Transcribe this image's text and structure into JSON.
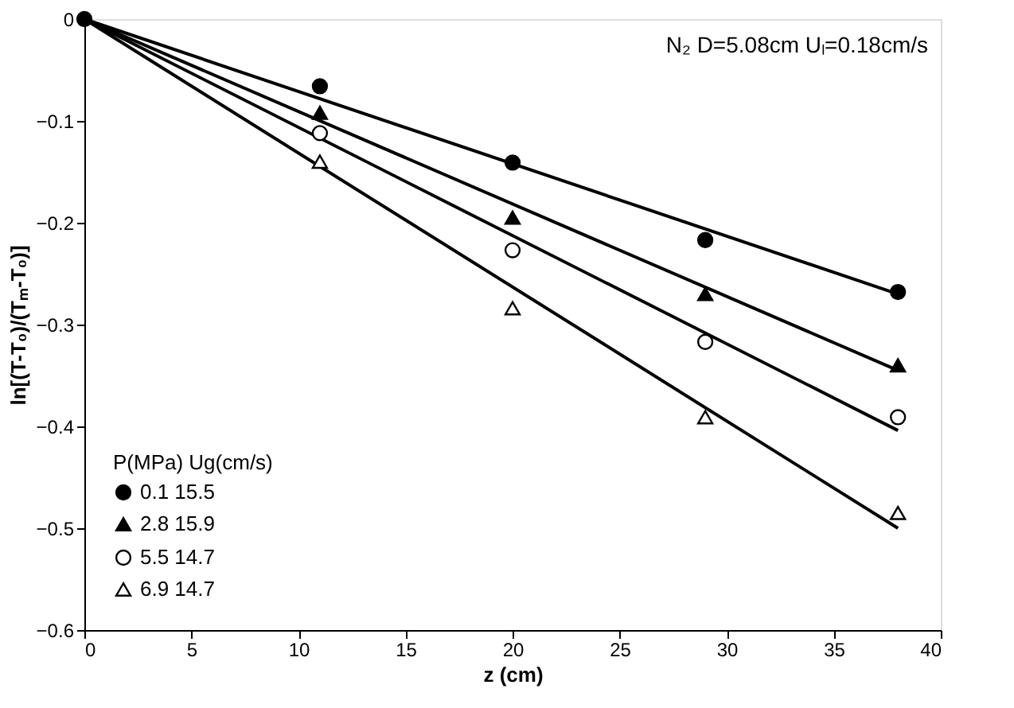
{
  "chart_data": {
    "type": "scatter",
    "xlabel": "z (cm)",
    "ylabel": "ln[(T-T₀)/(Tₘ-T₀)]",
    "legend_title": "P(MPa)   Ug(cm/s)",
    "legend": "bottom left",
    "annotations": [
      "N₂ D=5.08cm Uₗ=0.18cm/s"
    ],
    "xlim": [
      0,
      40
    ],
    "xticks": [
      0,
      5,
      10,
      15,
      20,
      25,
      30,
      35,
      40
    ],
    "ylim": [
      -0.6,
      0
    ],
    "yticks": [
      -0.6,
      -0.5,
      -0.4,
      -0.3,
      -0.2,
      -0.1,
      0
    ],
    "grid": false,
    "series": [
      {
        "name": "0.1      15.5",
        "color": "#000000",
        "marker": "circle",
        "x": [
          0,
          11,
          20,
          29,
          38
        ],
        "values": [
          0,
          -0.066,
          -0.141,
          -0.217,
          -0.268
        ]
      },
      {
        "name": "2.8      15.9",
        "color": "#000000",
        "marker": "triangle",
        "x": [
          11,
          20,
          29,
          38
        ],
        "values": [
          -0.092,
          -0.195,
          -0.27,
          -0.34
        ]
      },
      {
        "name": "5.5      14.7",
        "color": "#ffffff",
        "marker": "circle",
        "x": [
          11,
          20,
          29,
          38
        ],
        "values": [
          -0.112,
          -0.227,
          -0.317,
          -0.391
        ]
      },
      {
        "name": "6.9      14.7",
        "color": "#ffffff",
        "marker": "triangle",
        "x": [
          11,
          20,
          29,
          38
        ],
        "values": [
          -0.14,
          -0.284,
          -0.391,
          -0.485
        ]
      },
      {
        "type": "line",
        "color": "#000000",
        "line_style": "solid",
        "x": [
          0,
          38
        ],
        "values": [
          0,
          -0.27
        ]
      },
      {
        "type": "line",
        "color": "#000000",
        "line_style": "solid",
        "x": [
          0,
          38
        ],
        "values": [
          0,
          -0.345
        ]
      },
      {
        "type": "line",
        "color": "#000000",
        "line_style": "solid",
        "x": [
          0,
          38
        ],
        "values": [
          0,
          -0.404
        ]
      },
      {
        "type": "line",
        "color": "#000000",
        "line_style": "solid",
        "x": [
          0,
          38
        ],
        "values": [
          0,
          -0.5
        ]
      }
    ]
  }
}
